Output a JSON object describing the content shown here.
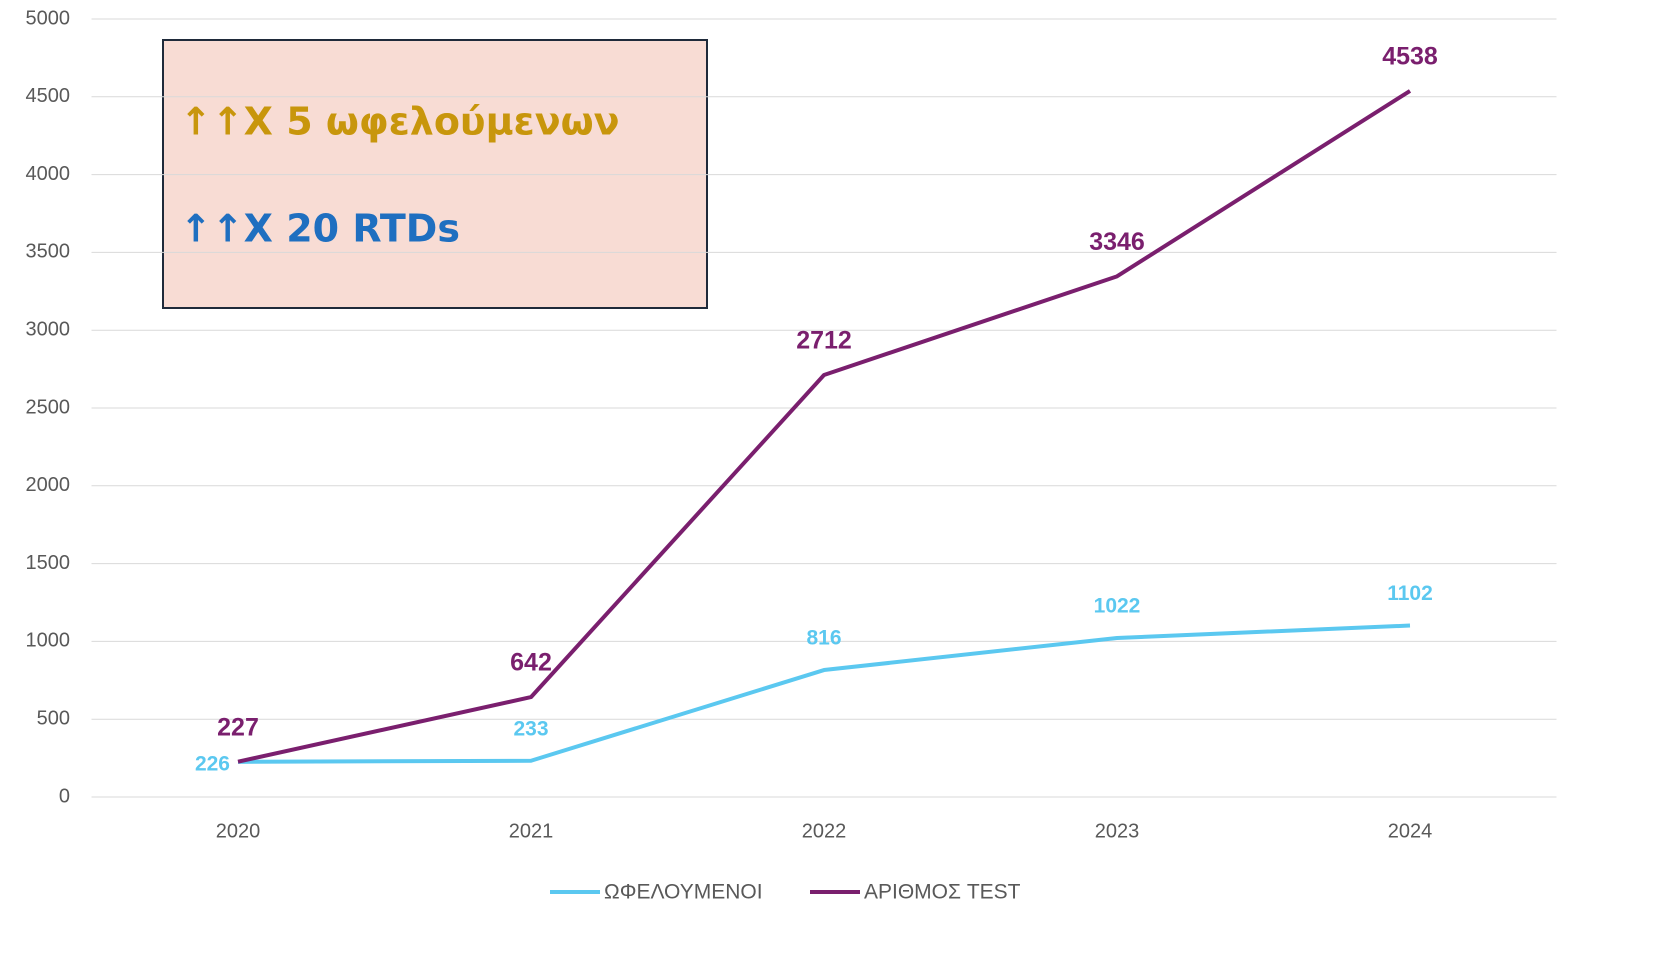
{
  "chart_data": {
    "type": "line",
    "categories": [
      "2020",
      "2021",
      "2022",
      "2023",
      "2024"
    ],
    "series": [
      {
        "name": "ΩΦΕΛΟΥΜΕΝΟΙ",
        "color": "#5bc8f0",
        "values": [
          226,
          233,
          816,
          1022,
          1102
        ]
      },
      {
        "name": "ΑΡΙΘΜΟΣ TEST",
        "color": "#7a1f6e",
        "values": [
          227,
          642,
          2712,
          3346,
          4538
        ]
      }
    ],
    "ylim": [
      0,
      5000
    ],
    "yticks": [
      0,
      500,
      1000,
      1500,
      2000,
      2500,
      3000,
      3500,
      4000,
      4500,
      5000
    ],
    "grid": true,
    "legend": "bottom",
    "annotations": [
      {
        "text": "↑↑X 5 ωφελούμενων",
        "color": "#c8960c"
      },
      {
        "text": "↑↑X 20 RTDs",
        "color": "#1f6fc0"
      }
    ]
  }
}
